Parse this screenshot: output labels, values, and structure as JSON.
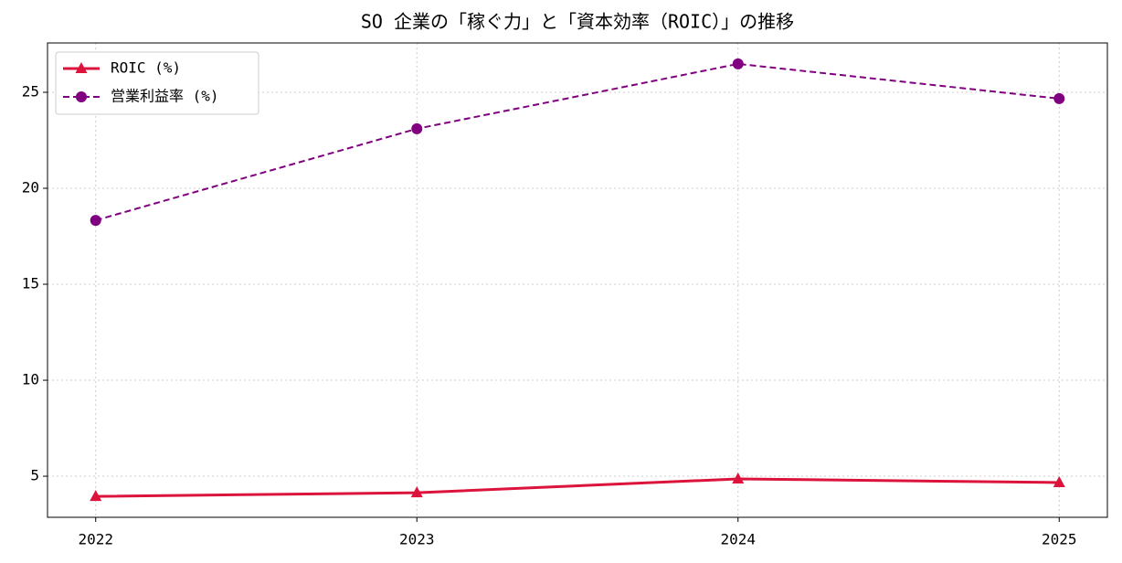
{
  "chart_data": {
    "type": "line",
    "title": "SO 企業の「稼ぐ力」と「資本効率（ROIC）」の推移",
    "x": [
      2022,
      2023,
      2024,
      2025
    ],
    "xlim": [
      2021.85,
      2025.15
    ],
    "xticks": [
      2022,
      2023,
      2024,
      2025
    ],
    "ylim": [
      2.86,
      27.57
    ],
    "yticks": [
      5,
      10,
      15,
      20,
      25
    ],
    "grid": true,
    "legend": "upper-left",
    "series": [
      {
        "name": "ROIC (%)",
        "color": "#dc143c",
        "dash": "solid",
        "marker": "triangle",
        "values": [
          3.95,
          4.14,
          4.86,
          4.67
        ]
      },
      {
        "name": "営業利益率 (%)",
        "color": "#800080",
        "dash": "dashed",
        "marker": "circle",
        "values": [
          18.33,
          23.1,
          26.48,
          24.67
        ]
      }
    ]
  }
}
